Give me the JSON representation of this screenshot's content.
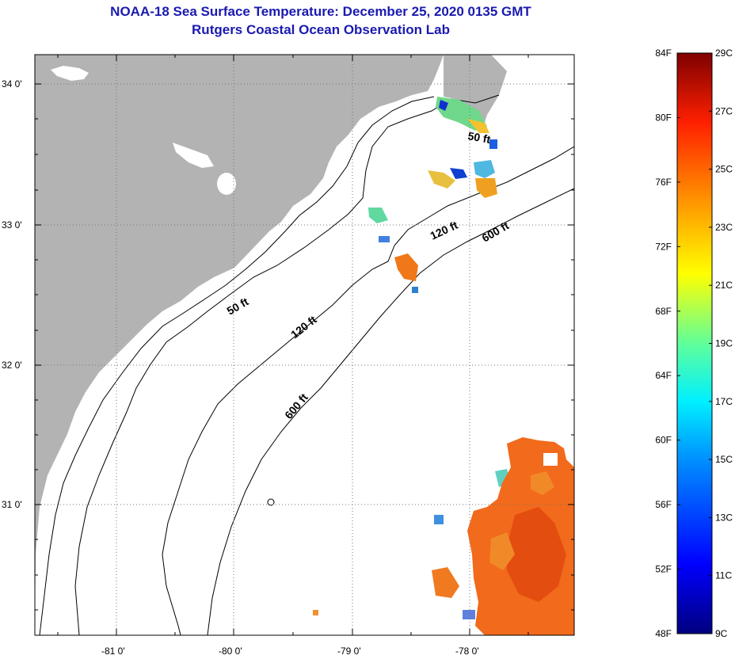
{
  "title": "NOAA-18 Sea Surface Temperature:  December 25, 2020 0135 GMT",
  "subtitle": "Rutgers Coastal Ocean Observation Lab",
  "lat_labels": [
    "34 0'",
    "33 0'",
    "32 0'",
    "31 0'"
  ],
  "lon_labels": [
    "-81 0'",
    "-80 0'",
    "-79 0'",
    "-78 0'"
  ],
  "contour_labels": {
    "c50_north": "50 ft",
    "c50_south": "50 ft",
    "c120_north": "120 ft",
    "c120_south": "120 ft",
    "c600_north": "600 ft",
    "c600_south": "600 ft"
  },
  "colorbar": {
    "fahrenheit": [
      "84F",
      "80F",
      "76F",
      "72F",
      "68F",
      "64F",
      "60F",
      "56F",
      "52F",
      "48F"
    ],
    "celsius": [
      "29C",
      "27C",
      "25C",
      "23C",
      "21C",
      "19C",
      "17C",
      "15C",
      "13C",
      "11C",
      "9C"
    ]
  },
  "colors": {
    "land": "#b3b3b3",
    "title": "#1a1ab0",
    "warm_sst": "#f26a1b"
  }
}
